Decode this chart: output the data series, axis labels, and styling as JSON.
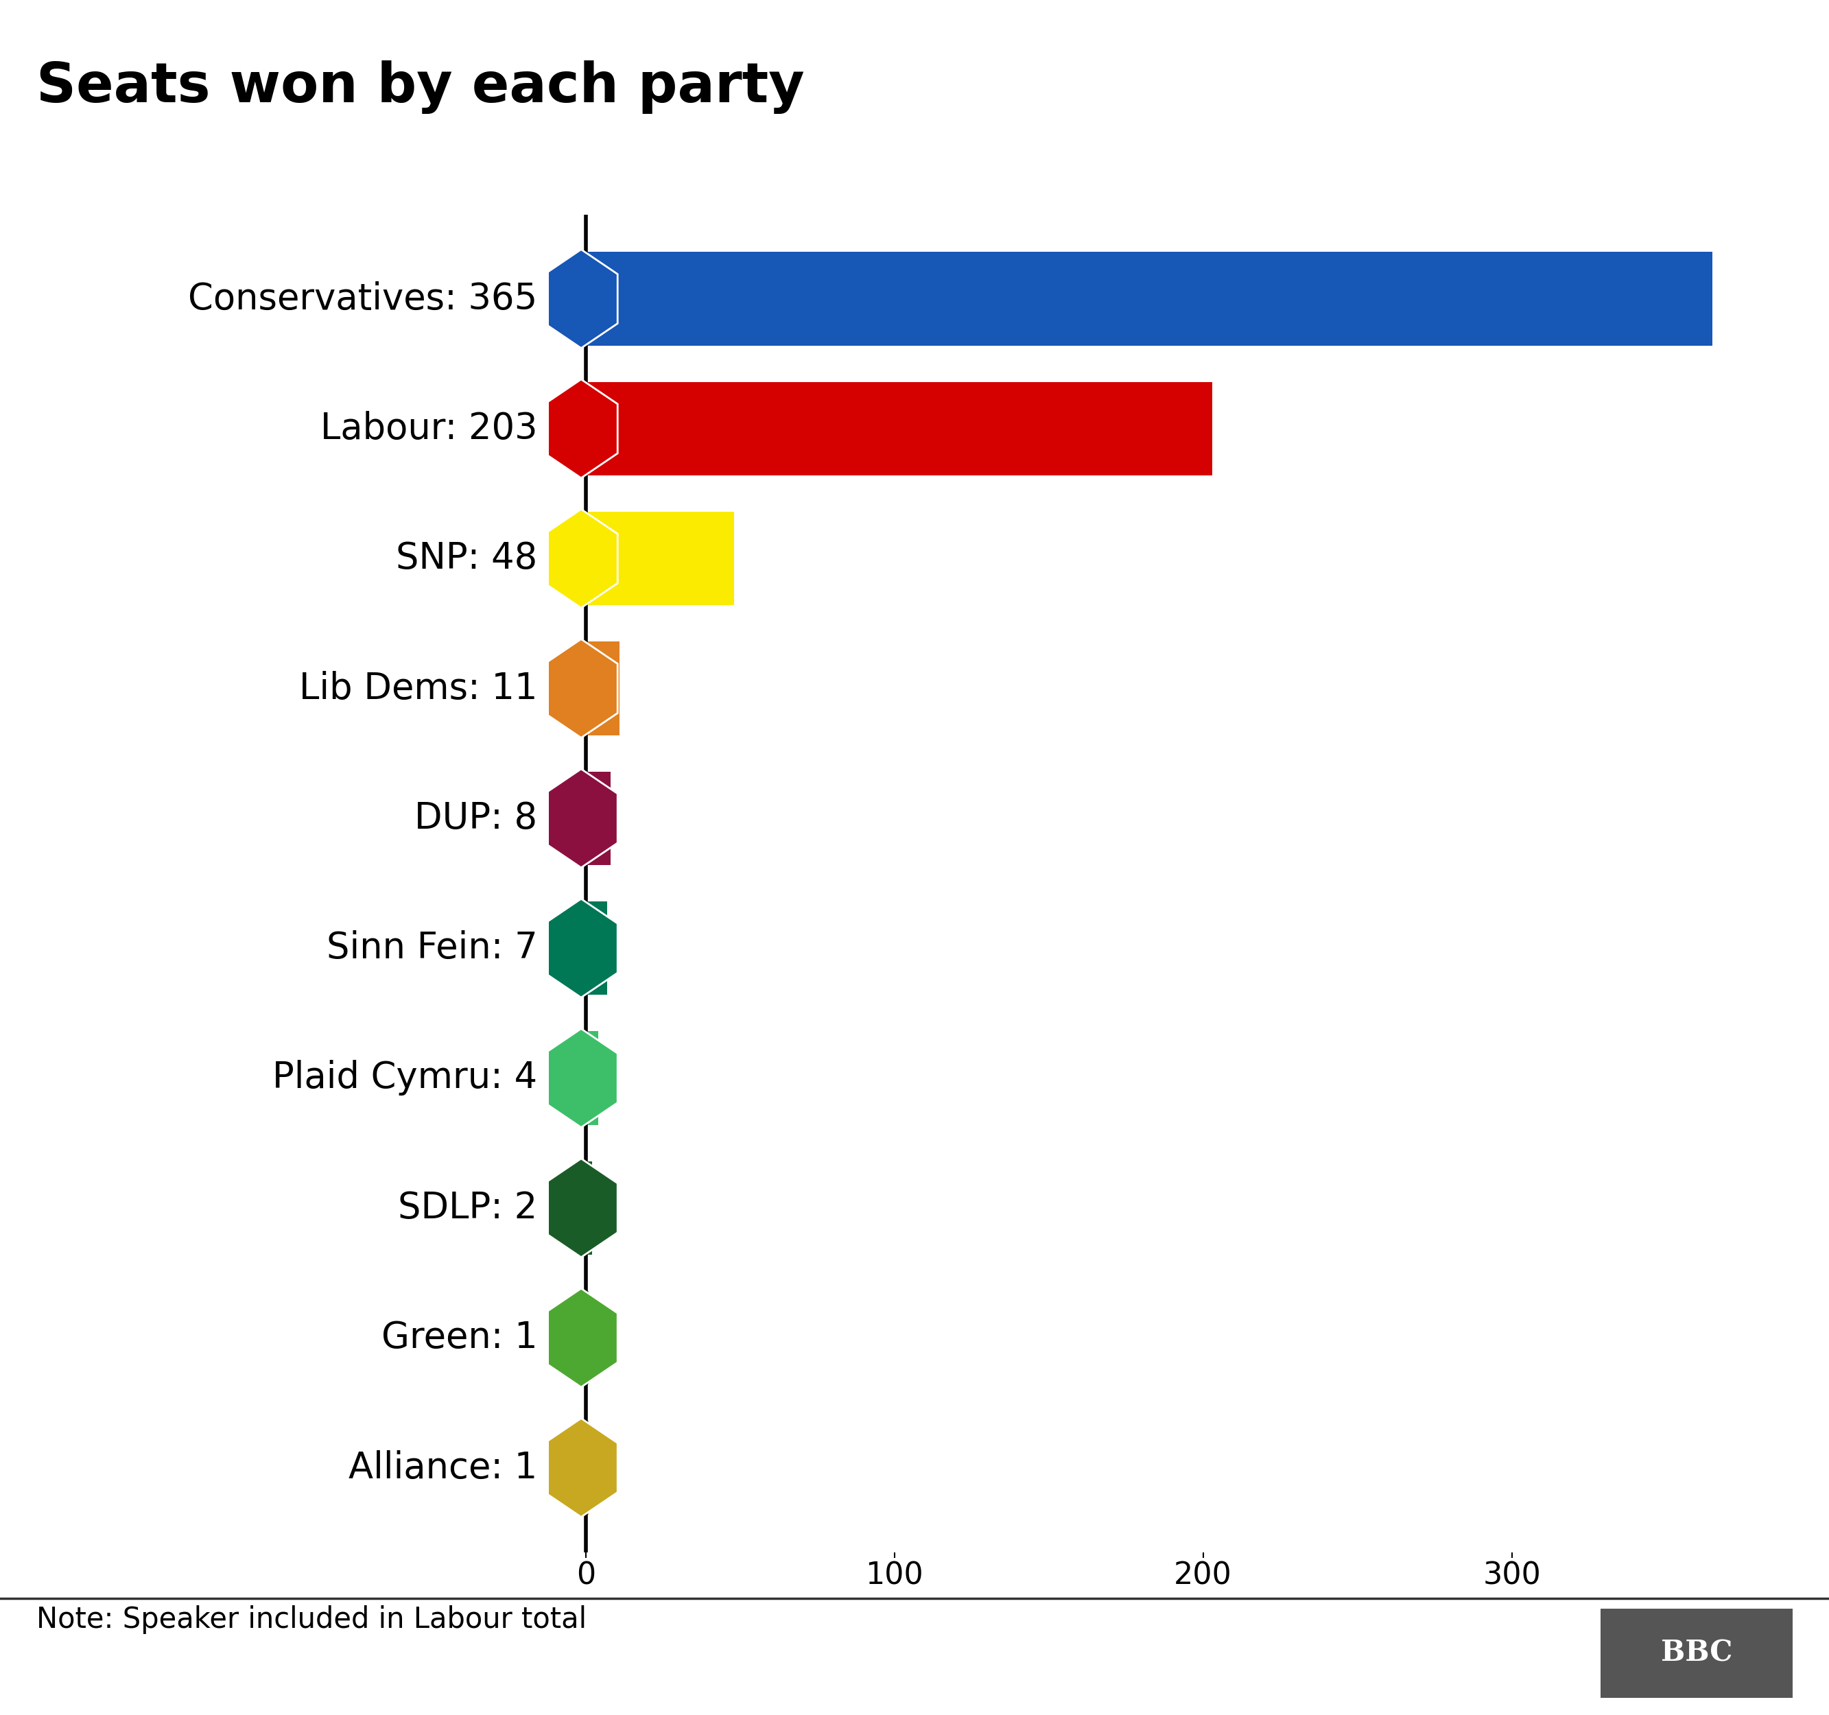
{
  "title": "Seats won by each party",
  "parties": [
    {
      "name": "Conservatives: 365",
      "seats": 365,
      "color": "#1757B5"
    },
    {
      "name": "Labour: 203",
      "seats": 203,
      "color": "#D50000"
    },
    {
      "name": "SNP: 48",
      "seats": 48,
      "color": "#FAEB00"
    },
    {
      "name": "Lib Dems: 11",
      "seats": 11,
      "color": "#E08020"
    },
    {
      "name": "DUP: 8",
      "seats": 8,
      "color": "#8B1040"
    },
    {
      "name": "Sinn Fein: 7",
      "seats": 7,
      "color": "#007755"
    },
    {
      "name": "Plaid Cymru: 4",
      "seats": 4,
      "color": "#3DBF6A"
    },
    {
      "name": "SDLP: 2",
      "seats": 2,
      "color": "#1A5C28"
    },
    {
      "name": "Green: 1",
      "seats": 1,
      "color": "#4DA832"
    },
    {
      "name": "Alliance: 1",
      "seats": 1,
      "color": "#C8A820"
    }
  ],
  "note": "Note: Speaker included in Labour total",
  "xlim": [
    -12,
    385
  ],
  "xticks": [
    0,
    100,
    200,
    300
  ],
  "background_color": "#FFFFFF",
  "title_fontsize": 58,
  "label_fontsize": 38,
  "tick_fontsize": 32,
  "note_fontsize": 30,
  "bar_height": 0.72,
  "bar_spacing": 1.0
}
